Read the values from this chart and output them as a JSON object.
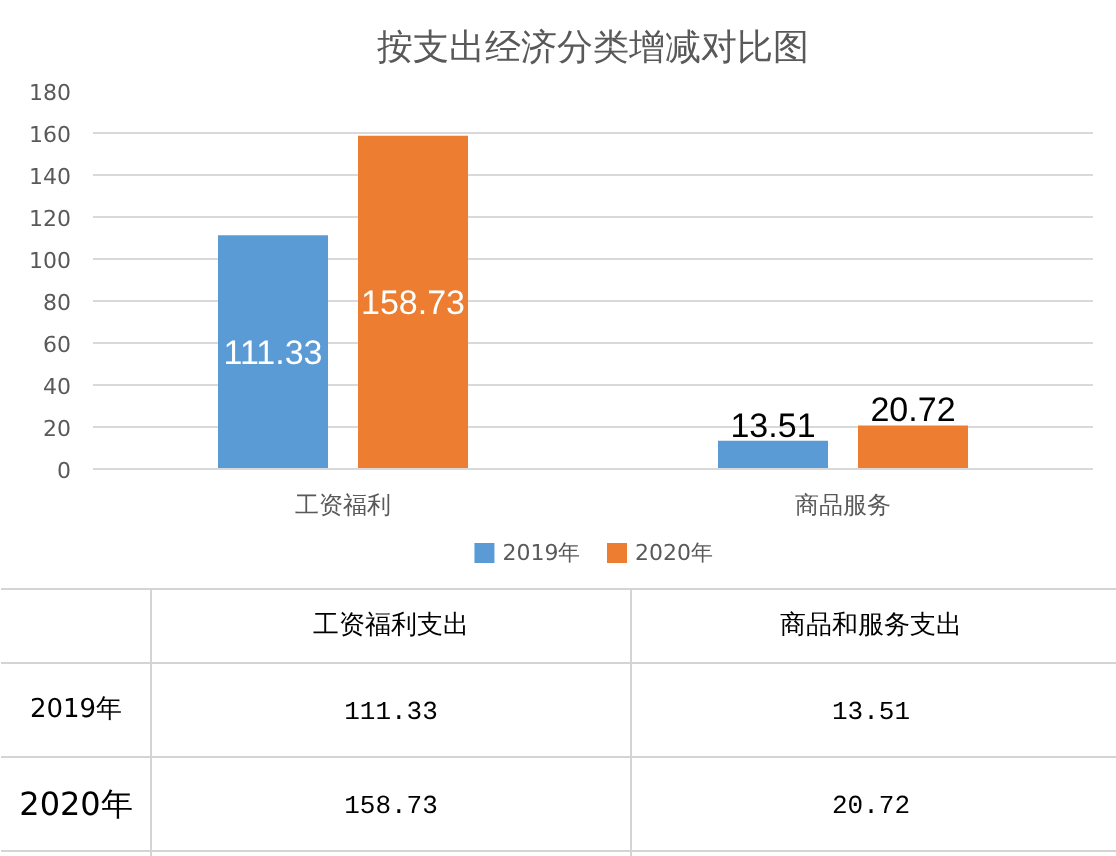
{
  "chart_data": {
    "type": "bar",
    "title": "按支出经济分类增减对比图",
    "categories": [
      "工资福利",
      "商品服务"
    ],
    "series": [
      {
        "name": "2019年",
        "color": "#5b9bd5",
        "values": [
          111.33,
          13.51
        ]
      },
      {
        "name": "2020年",
        "color": "#ed7d31",
        "values": [
          158.73,
          20.72
        ]
      }
    ],
    "ylim": [
      0,
      180
    ],
    "yticks": [
      0,
      20,
      40,
      60,
      80,
      100,
      120,
      140,
      160,
      180
    ],
    "grid": "y",
    "legend": "bottom",
    "data_labels": true,
    "annotations": [
      "工资福利支出",
      "商品和服务支出",
      "111.33",
      "13.51",
      "158.73",
      "20.72"
    ]
  }
}
